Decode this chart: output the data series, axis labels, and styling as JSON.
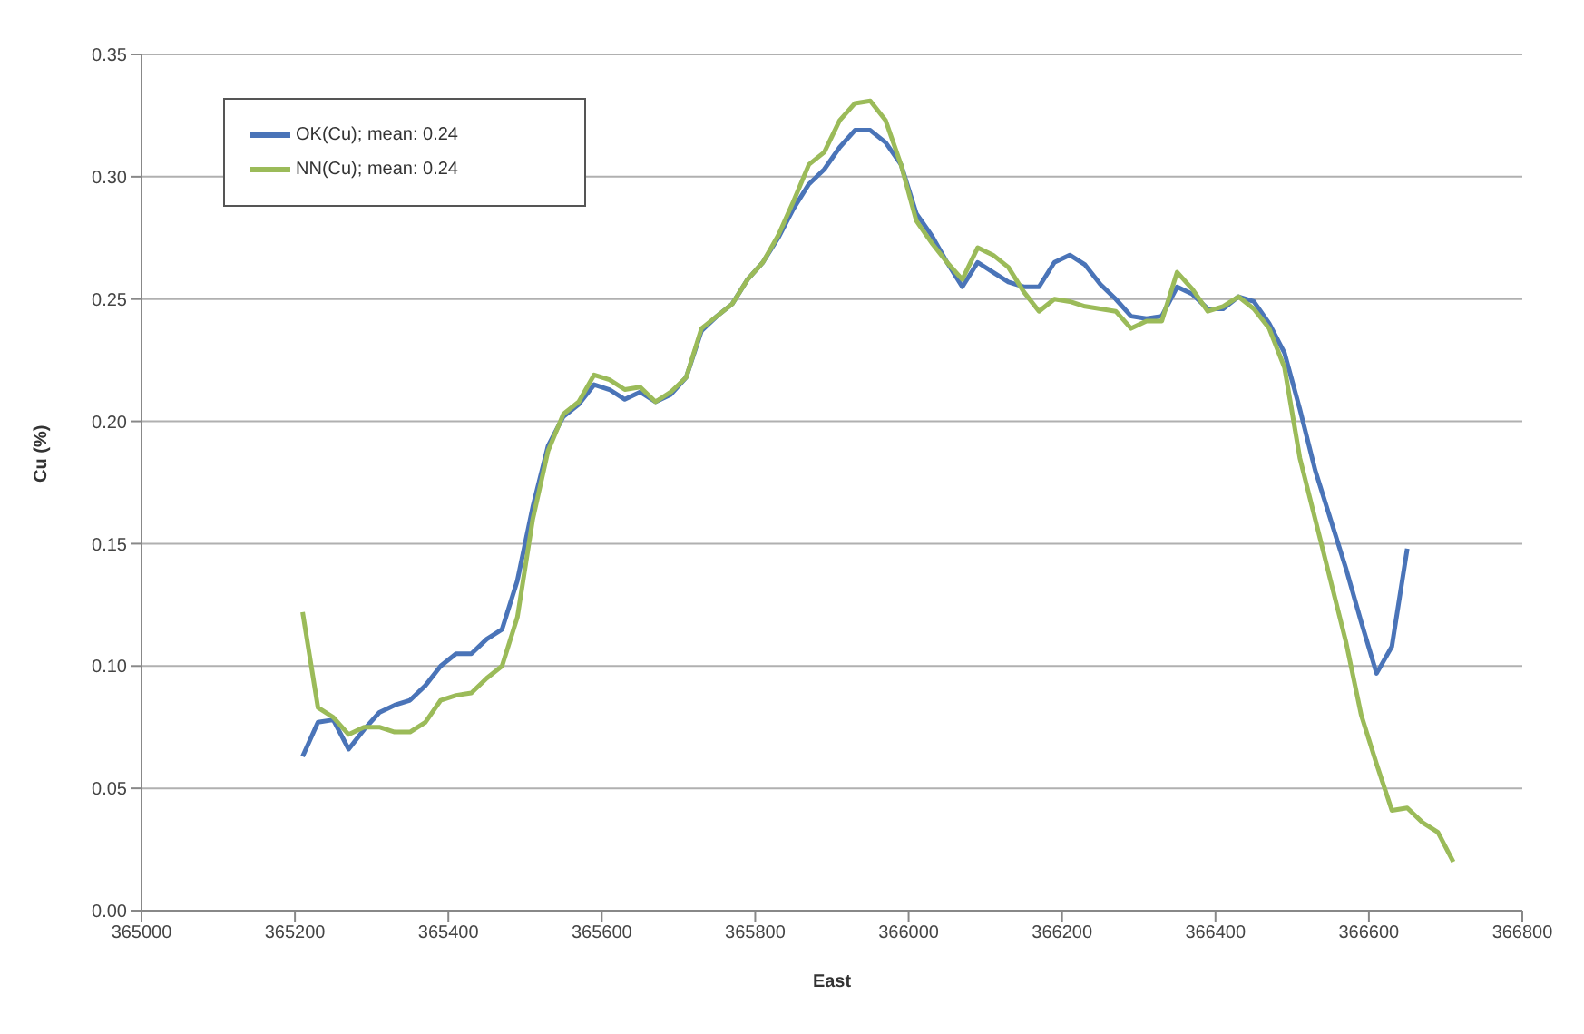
{
  "chart_data": {
    "type": "line",
    "xlabel": "East",
    "ylabel": "Cu (%)",
    "xlim": [
      365000,
      366800
    ],
    "xticks": [
      365000,
      365200,
      365400,
      365600,
      365800,
      366000,
      366200,
      366400,
      366600,
      366800
    ],
    "ylim": [
      0,
      0.35
    ],
    "yticks": [
      {
        "value": 0,
        "label": "0.00"
      },
      {
        "value": 0.05,
        "label": "0.05"
      },
      {
        "value": 0.1,
        "label": "0.10"
      },
      {
        "value": 0.15,
        "label": "0.15"
      },
      {
        "value": 0.2,
        "label": "0.20"
      },
      {
        "value": 0.25,
        "label": "0.25"
      },
      {
        "value": 0.3,
        "label": "0.30"
      },
      {
        "value": 0.35,
        "label": "0.35"
      }
    ],
    "grid": "y",
    "legend": "top left",
    "marker": "none",
    "line_style": "solid",
    "series": [
      {
        "name": "OK(Cu); mean: 0.24",
        "color": "#4a74b8",
        "x": [
          365210,
          365230,
          365250,
          365270,
          365290,
          365310,
          365330,
          365350,
          365370,
          365390,
          365410,
          365430,
          365450,
          365470,
          365490,
          365510,
          365530,
          365550,
          365570,
          365590,
          365610,
          365630,
          365650,
          365670,
          365690,
          365710,
          365730,
          365750,
          365770,
          365790,
          365810,
          365830,
          365850,
          365870,
          365890,
          365910,
          365930,
          365950,
          365970,
          365990,
          366010,
          366030,
          366050,
          366070,
          366090,
          366110,
          366130,
          366150,
          366170,
          366190,
          366210,
          366230,
          366250,
          366270,
          366290,
          366310,
          366330,
          366350,
          366370,
          366390,
          366410,
          366430,
          366450,
          366470,
          366490,
          366510,
          366530,
          366550,
          366570,
          366590,
          366610,
          366630,
          366650
        ],
        "values": [
          0.063,
          0.077,
          0.078,
          0.066,
          0.074,
          0.081,
          0.084,
          0.086,
          0.092,
          0.1,
          0.105,
          0.105,
          0.111,
          0.115,
          0.135,
          0.165,
          0.19,
          0.202,
          0.207,
          0.215,
          0.213,
          0.209,
          0.212,
          0.208,
          0.211,
          0.218,
          0.237,
          0.243,
          0.248,
          0.258,
          0.265,
          0.275,
          0.287,
          0.297,
          0.303,
          0.312,
          0.319,
          0.319,
          0.314,
          0.305,
          0.285,
          0.276,
          0.265,
          0.255,
          0.265,
          0.261,
          0.257,
          0.255,
          0.255,
          0.265,
          0.268,
          0.264,
          0.256,
          0.25,
          0.243,
          0.242,
          0.243,
          0.255,
          0.252,
          0.246,
          0.246,
          0.251,
          0.249,
          0.24,
          0.228,
          0.205,
          0.18,
          0.16,
          0.14,
          0.118,
          0.097,
          0.108,
          0.148
        ]
      },
      {
        "name": "NN(Cu); mean: 0.24",
        "color": "#9bbb59",
        "x": [
          365210,
          365230,
          365250,
          365270,
          365290,
          365310,
          365330,
          365350,
          365370,
          365390,
          365410,
          365430,
          365450,
          365470,
          365490,
          365510,
          365530,
          365550,
          365570,
          365590,
          365610,
          365630,
          365650,
          365670,
          365690,
          365710,
          365730,
          365750,
          365770,
          365790,
          365810,
          365830,
          365850,
          365870,
          365890,
          365910,
          365930,
          365950,
          365970,
          365990,
          366010,
          366030,
          366050,
          366070,
          366090,
          366110,
          366130,
          366150,
          366170,
          366190,
          366210,
          366230,
          366250,
          366270,
          366290,
          366310,
          366330,
          366350,
          366370,
          366390,
          366410,
          366430,
          366450,
          366470,
          366490,
          366510,
          366530,
          366550,
          366570,
          366590,
          366610,
          366630,
          366650,
          366670,
          366690,
          366710
        ],
        "values": [
          0.122,
          0.083,
          0.079,
          0.072,
          0.075,
          0.075,
          0.073,
          0.073,
          0.077,
          0.086,
          0.088,
          0.089,
          0.095,
          0.1,
          0.12,
          0.16,
          0.188,
          0.203,
          0.208,
          0.219,
          0.217,
          0.213,
          0.214,
          0.208,
          0.212,
          0.218,
          0.238,
          0.243,
          0.248,
          0.258,
          0.265,
          0.276,
          0.29,
          0.305,
          0.31,
          0.323,
          0.33,
          0.331,
          0.323,
          0.305,
          0.282,
          0.273,
          0.265,
          0.258,
          0.271,
          0.268,
          0.263,
          0.253,
          0.245,
          0.25,
          0.249,
          0.247,
          0.246,
          0.245,
          0.238,
          0.241,
          0.241,
          0.261,
          0.254,
          0.245,
          0.247,
          0.251,
          0.246,
          0.238,
          0.222,
          0.185,
          0.16,
          0.135,
          0.11,
          0.08,
          0.06,
          0.041,
          0.042,
          0.036,
          0.032,
          0.02
        ]
      }
    ]
  }
}
